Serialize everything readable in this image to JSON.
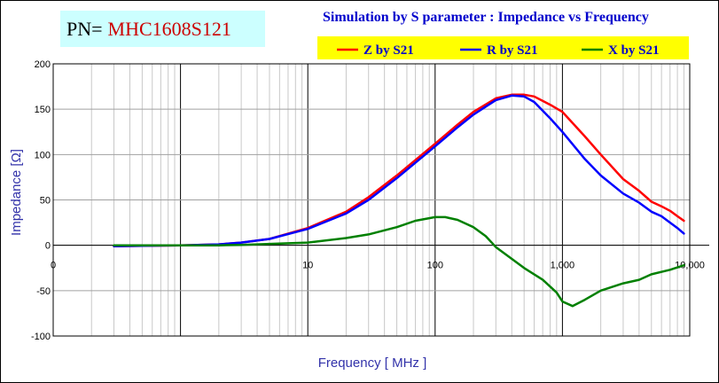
{
  "part_number": {
    "label": "PN=",
    "value": "MHC1608S121"
  },
  "chart_data": {
    "type": "line",
    "title": "Simulation by S parameter : Impedance vs Frequency",
    "xlabel": "Frequency [ MHz ]",
    "ylabel": "Impedance [Ω]",
    "xscale": "log",
    "xlim": [
      0.1,
      10000
    ],
    "ylim": [
      -100,
      200
    ],
    "x_ticks": [
      {
        "value": 0.1,
        "label": "0"
      },
      {
        "value": 1,
        "label": ""
      },
      {
        "value": 10,
        "label": "10"
      },
      {
        "value": 100,
        "label": "100"
      },
      {
        "value": 1000,
        "label": "1,000"
      },
      {
        "value": 10000,
        "label": "10,000"
      }
    ],
    "y_ticks": [
      -100,
      -50,
      0,
      50,
      100,
      150,
      200
    ],
    "grid": true,
    "legend_position": "top-right",
    "series": [
      {
        "name": "Z by S21",
        "color": "#ff0000",
        "points": [
          [
            0.3,
            -1
          ],
          [
            0.5,
            -0.5
          ],
          [
            1,
            0
          ],
          [
            2,
            1
          ],
          [
            3,
            3
          ],
          [
            5,
            7
          ],
          [
            10,
            19
          ],
          [
            20,
            37
          ],
          [
            30,
            53
          ],
          [
            50,
            77
          ],
          [
            100,
            112
          ],
          [
            150,
            133
          ],
          [
            200,
            147
          ],
          [
            300,
            162
          ],
          [
            400,
            166
          ],
          [
            500,
            166
          ],
          [
            600,
            164
          ],
          [
            800,
            155
          ],
          [
            1000,
            147
          ],
          [
            1500,
            120
          ],
          [
            2000,
            100
          ],
          [
            3000,
            73
          ],
          [
            4000,
            60
          ],
          [
            5000,
            48
          ],
          [
            6000,
            43
          ],
          [
            7000,
            38
          ],
          [
            8000,
            32
          ],
          [
            9000,
            27
          ]
        ]
      },
      {
        "name": "R by S21",
        "color": "#0000ff",
        "points": [
          [
            0.3,
            -1
          ],
          [
            0.5,
            -0.5
          ],
          [
            1,
            0
          ],
          [
            2,
            1
          ],
          [
            3,
            3
          ],
          [
            5,
            7
          ],
          [
            10,
            18
          ],
          [
            20,
            35
          ],
          [
            30,
            50
          ],
          [
            50,
            74
          ],
          [
            100,
            109
          ],
          [
            150,
            130
          ],
          [
            200,
            144
          ],
          [
            300,
            160
          ],
          [
            400,
            165
          ],
          [
            500,
            164
          ],
          [
            600,
            158
          ],
          [
            800,
            140
          ],
          [
            1000,
            125
          ],
          [
            1500,
            95
          ],
          [
            2000,
            77
          ],
          [
            3000,
            57
          ],
          [
            4000,
            47
          ],
          [
            5000,
            37
          ],
          [
            6000,
            32
          ],
          [
            7000,
            25
          ],
          [
            8000,
            19
          ],
          [
            9000,
            13
          ]
        ]
      },
      {
        "name": "X by S21",
        "color": "#008000",
        "points": [
          [
            0.3,
            0
          ],
          [
            0.5,
            0
          ],
          [
            1,
            0
          ],
          [
            2,
            0
          ],
          [
            3,
            0.5
          ],
          [
            5,
            1.5
          ],
          [
            10,
            3
          ],
          [
            20,
            8
          ],
          [
            30,
            12
          ],
          [
            50,
            20
          ],
          [
            70,
            27
          ],
          [
            100,
            31
          ],
          [
            120,
            31
          ],
          [
            150,
            28
          ],
          [
            200,
            20
          ],
          [
            250,
            10
          ],
          [
            300,
            -2
          ],
          [
            400,
            -15
          ],
          [
            500,
            -25
          ],
          [
            700,
            -38
          ],
          [
            900,
            -52
          ],
          [
            1000,
            -62
          ],
          [
            1200,
            -67
          ],
          [
            1500,
            -60
          ],
          [
            2000,
            -50
          ],
          [
            3000,
            -42
          ],
          [
            4000,
            -38
          ],
          [
            5000,
            -32
          ],
          [
            7000,
            -27
          ],
          [
            9000,
            -22
          ]
        ]
      }
    ]
  }
}
